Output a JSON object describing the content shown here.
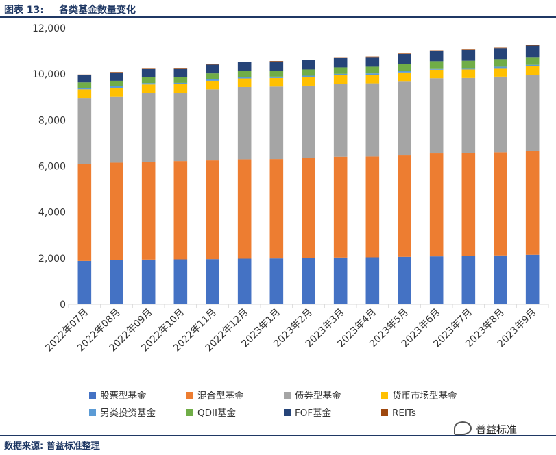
{
  "header": {
    "figure_no": "图表 13:",
    "figure_title": "各类基金数量变化"
  },
  "footer": {
    "source": "数据来源: 普益标准整理",
    "watermark": "普益标准"
  },
  "chart_data": {
    "type": "bar",
    "stacked": true,
    "title": "各类基金数量变化",
    "xlabel": "",
    "ylabel": "",
    "ylim": [
      0,
      12000
    ],
    "yticks": [
      "0",
      "2,000",
      "4,000",
      "6,000",
      "8,000",
      "10,000",
      "12,000"
    ],
    "ytick_values": [
      0,
      2000,
      4000,
      6000,
      8000,
      10000,
      12000
    ],
    "grid": false,
    "legend_position": "bottom",
    "categories": [
      "2022年07月",
      "2022年08月",
      "2022年09月",
      "2022年10月",
      "2022年11月",
      "2022年12月",
      "2023年1月",
      "2023年2月",
      "2023年3月",
      "2023年4月",
      "2023年5月",
      "2023年6月",
      "2023年7月",
      "2023年8月",
      "2023年9月"
    ],
    "series": [
      {
        "name": "股票型基金",
        "color": "#4472c4",
        "values": [
          1880,
          1910,
          1940,
          1950,
          1960,
          1980,
          1990,
          2010,
          2030,
          2040,
          2060,
          2080,
          2100,
          2120,
          2150
        ]
      },
      {
        "name": "混合型基金",
        "color": "#ed7d31",
        "values": [
          4200,
          4240,
          4250,
          4270,
          4290,
          4320,
          4320,
          4340,
          4380,
          4380,
          4430,
          4470,
          4480,
          4480,
          4510
        ]
      },
      {
        "name": "债券型基金",
        "color": "#a5a5a5",
        "values": [
          2880,
          2880,
          2990,
          2970,
          3090,
          3140,
          3150,
          3150,
          3170,
          3180,
          3210,
          3270,
          3250,
          3290,
          3310
        ]
      },
      {
        "name": "货币市场型基金",
        "color": "#ffc000",
        "values": [
          380,
          380,
          370,
          370,
          370,
          370,
          370,
          370,
          370,
          370,
          370,
          370,
          370,
          370,
          370
        ]
      },
      {
        "name": "另类投资基金",
        "color": "#5b9bd5",
        "values": [
          60,
          60,
          60,
          60,
          60,
          60,
          60,
          60,
          60,
          60,
          60,
          60,
          60,
          60,
          60
        ]
      },
      {
        "name": "QDII基金",
        "color": "#70ad47",
        "values": [
          240,
          240,
          250,
          250,
          260,
          260,
          260,
          270,
          280,
          290,
          300,
          310,
          320,
          330,
          340
        ]
      },
      {
        "name": "FOF基金",
        "color": "#264478",
        "values": [
          320,
          360,
          380,
          380,
          380,
          390,
          400,
          410,
          420,
          420,
          440,
          450,
          470,
          480,
          500
        ]
      },
      {
        "name": "REITs",
        "color": "#9e480e",
        "values": [
          20,
          20,
          20,
          20,
          20,
          20,
          20,
          20,
          20,
          20,
          20,
          20,
          20,
          20,
          30
        ]
      }
    ]
  }
}
